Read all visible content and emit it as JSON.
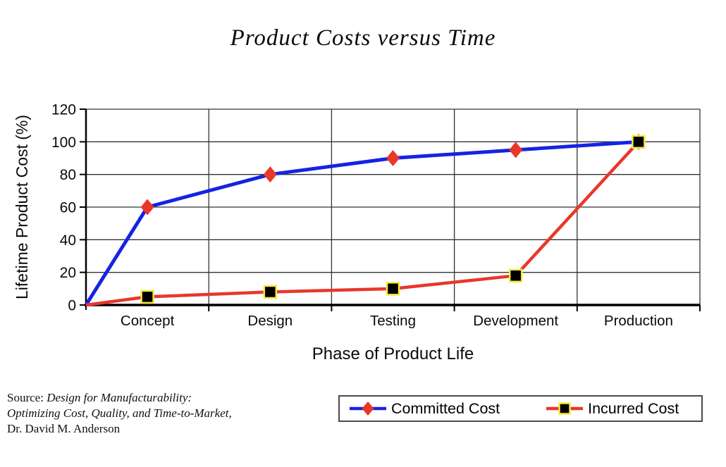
{
  "chart_data": {
    "type": "line",
    "title": "Product Costs versus Time",
    "xlabel": "Phase of Product Life",
    "ylabel": "Lifetime Product Cost (%)",
    "categories": [
      "Concept",
      "Design",
      "Testing",
      "Development",
      "Production"
    ],
    "y_ticks": [
      0,
      20,
      40,
      60,
      80,
      100,
      120
    ],
    "ylim": [
      0,
      120
    ],
    "grid": true,
    "legend_position": "bottom-right",
    "series": [
      {
        "name": "Committed Cost",
        "color": "#1523E2",
        "line_width": 5,
        "marker": "diamond",
        "marker_color": "#E9372A",
        "marker_border": "#E9372A",
        "start_value": 0,
        "values": [
          60,
          80,
          90,
          95,
          100
        ]
      },
      {
        "name": "Incurred Cost",
        "color": "#E9372A",
        "line_width": 4.5,
        "marker": "square",
        "marker_color": "#000000",
        "marker_border": "#F3EA3D",
        "start_value": 0,
        "values": [
          5,
          8,
          10,
          18,
          100
        ]
      }
    ]
  },
  "source": {
    "prefix": "Source: ",
    "work_line1": "Design for Manufacturability:",
    "work_line2": "Optimizing Cost, Quality, and Time-to-Market,",
    "author": "Dr. David M. Anderson"
  }
}
